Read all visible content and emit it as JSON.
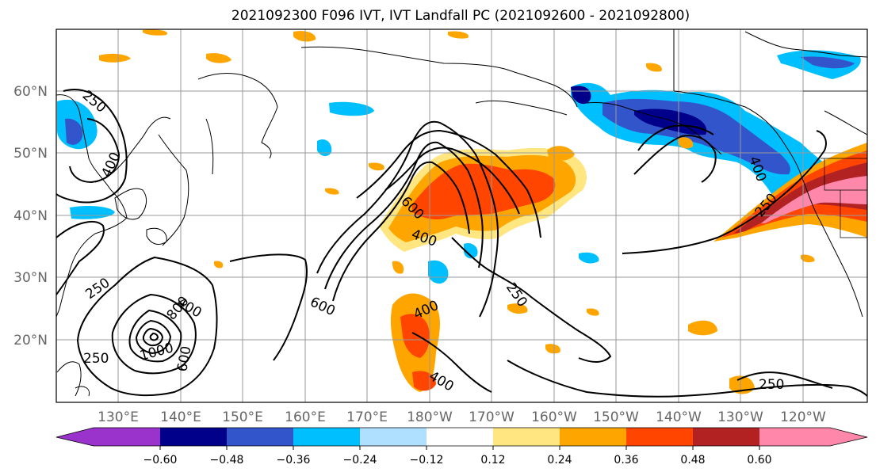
{
  "title": "2021092300 F096 IVT, IVT Landfall PC (2021092600 - 2021092800)",
  "lat_labels": [
    "60°N",
    "50°N",
    "40°N",
    "30°N",
    "20°N"
  ],
  "lon_labels": [
    "130°E",
    "140°E",
    "150°E",
    "160°E",
    "170°E",
    "180°W",
    "170°W",
    "160°W",
    "150°W",
    "140°W",
    "130°W",
    "120°W"
  ],
  "colorbar": {
    "colors": [
      "#9933cc",
      "#00008b",
      "#3355cc",
      "#00bfff",
      "#b0e0ff",
      "#ffffff",
      "#ffe680",
      "#ffa500",
      "#ff4500",
      "#b22222",
      "#ff88aa"
    ],
    "ticks": [
      "−0.60",
      "−0.48",
      "−0.36",
      "−0.24",
      "−0.12",
      "0.12",
      "0.24",
      "0.36",
      "0.48",
      "0.60"
    ]
  },
  "contour_labels": [
    "250",
    "400",
    "250",
    "250",
    "400",
    "800",
    "1000",
    "600",
    "600",
    "400",
    "600",
    "400",
    "250",
    "400",
    "400",
    "250",
    "250"
  ]
}
